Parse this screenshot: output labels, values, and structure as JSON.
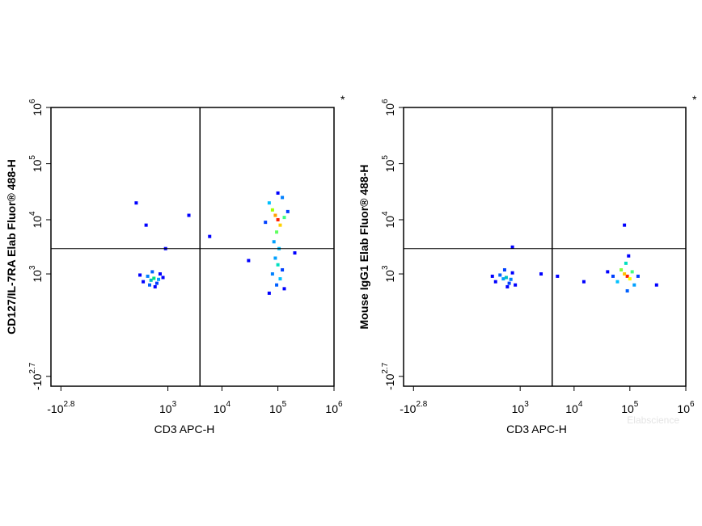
{
  "chart_data": [
    {
      "type": "scatter",
      "x_label": "CD3 APC-H",
      "y_label": "CD127/IL-7RA Elab Fluor® 488-H",
      "corner_mark": "*",
      "xlim": [
        -1000,
        1000000
      ],
      "ylim": [
        -800,
        1000000
      ],
      "xticks": [
        {
          "value": -631,
          "label": "-10",
          "exponent": "2.8"
        },
        {
          "value": 1000,
          "label": "10",
          "exponent": "3"
        },
        {
          "value": 10000,
          "label": "10",
          "exponent": "4"
        },
        {
          "value": 100000,
          "label": "10",
          "exponent": "5"
        },
        {
          "value": 1000000,
          "label": "10",
          "exponent": "6"
        }
      ],
      "yticks": [
        {
          "value": -501,
          "label": "-10",
          "exponent": "2.7"
        },
        {
          "value": 1000,
          "label": "10",
          "exponent": "3"
        },
        {
          "value": 10000,
          "label": "10",
          "exponent": "4"
        },
        {
          "value": 100000,
          "label": "10",
          "exponent": "5"
        },
        {
          "value": 1000000,
          "label": "10",
          "exponent": "6"
        }
      ],
      "x_gate": 4000,
      "y_gate": 3000,
      "x": [
        450,
        520,
        380,
        600,
        300,
        700,
        480,
        550,
        250,
        650,
        420,
        800,
        200,
        350,
        900,
        2500,
        6000,
        100000,
        90000,
        110000,
        80000,
        130000,
        70000,
        120000,
        95000,
        60000,
        150000,
        100000,
        85000,
        105000,
        90000,
        100000,
        80000,
        110000,
        95000,
        70000,
        120000,
        130000,
        30000,
        200000
      ],
      "y": [
        750,
        820,
        900,
        650,
        700,
        1000,
        1100,
        550,
        950,
        780,
        600,
        850,
        20000,
        8000,
        3000,
        12000,
        5000,
        10000,
        12000,
        8000,
        15000,
        11000,
        20000,
        25000,
        6000,
        9000,
        14000,
        30000,
        4000,
        3000,
        2000,
        1500,
        1000,
        800,
        600,
        400,
        1200,
        500,
        1800,
        2500
      ],
      "colors": [
        "#00c0c0",
        "#00e080",
        "#0080ff",
        "#0040ff",
        "#0000ff",
        "#0000ff",
        "#0060ff",
        "#0000ff",
        "#0000ff",
        "#00a0ff",
        "#0060ff",
        "#0000ff",
        "#0000ff",
        "#0000ff",
        "#0000ff",
        "#0000ff",
        "#0000ff",
        "#ff2000",
        "#ffa000",
        "#ffd000",
        "#a0ff00",
        "#40ff80",
        "#00c0ff",
        "#0080ff",
        "#60ff60",
        "#0040ff",
        "#0040ff",
        "#0000ff",
        "#00a0ff",
        "#00c0ff",
        "#00a0ff",
        "#00e0c0",
        "#0080ff",
        "#00c0ff",
        "#0060ff",
        "#0000ff",
        "#0040ff",
        "#0000ff",
        "#0000ff",
        "#0000ff"
      ]
    },
    {
      "type": "scatter",
      "x_label": "CD3 APC-H",
      "y_label": "Mouse IgG1 Elab Fluor® 488-H",
      "corner_mark": "*",
      "watermark": "Elabscience",
      "xlim": [
        -1000,
        1000000
      ],
      "ylim": [
        -800,
        1000000
      ],
      "xticks": [
        {
          "value": -631,
          "label": "-10",
          "exponent": "2.8"
        },
        {
          "value": 1000,
          "label": "10",
          "exponent": "3"
        },
        {
          "value": 10000,
          "label": "10",
          "exponent": "4"
        },
        {
          "value": 100000,
          "label": "10",
          "exponent": "5"
        },
        {
          "value": 1000000,
          "label": "10",
          "exponent": "6"
        }
      ],
      "yticks": [
        {
          "value": -501,
          "label": "-10",
          "exponent": "2.7"
        },
        {
          "value": 1000,
          "label": "10",
          "exponent": "3"
        },
        {
          "value": 10000,
          "label": "10",
          "exponent": "4"
        },
        {
          "value": 100000,
          "label": "10",
          "exponent": "5"
        },
        {
          "value": 1000000,
          "label": "10",
          "exponent": "6"
        }
      ],
      "x_gate": 4000,
      "y_gate": 3000,
      "x": [
        450,
        520,
        380,
        600,
        300,
        700,
        480,
        550,
        250,
        650,
        800,
        90000,
        80000,
        100000,
        70000,
        110000,
        60000,
        120000,
        85000,
        50000,
        140000,
        90000,
        95000,
        40000,
        5000,
        15000,
        2500,
        300000,
        80000,
        700
      ],
      "y": [
        800,
        850,
        950,
        650,
        700,
        1050,
        1200,
        550,
        900,
        780,
        600,
        900,
        1000,
        800,
        1200,
        1100,
        700,
        600,
        1600,
        900,
        900,
        450,
        2200,
        1100,
        900,
        700,
        1000,
        600,
        8000,
        3200
      ],
      "colors": [
        "#00a0ff",
        "#00c0c0",
        "#0060ff",
        "#0040ff",
        "#0000ff",
        "#0000ff",
        "#0040ff",
        "#0000ff",
        "#0000ff",
        "#0080ff",
        "#0000ff",
        "#ff2000",
        "#ffc000",
        "#ffff00",
        "#80ff40",
        "#40ff80",
        "#00c0ff",
        "#00a0ff",
        "#00e0c0",
        "#0040ff",
        "#0040ff",
        "#0060ff",
        "#0000ff",
        "#0000ff",
        "#0000ff",
        "#0000ff",
        "#0000ff",
        "#0000ff",
        "#0000ff",
        "#0000ff"
      ]
    }
  ]
}
